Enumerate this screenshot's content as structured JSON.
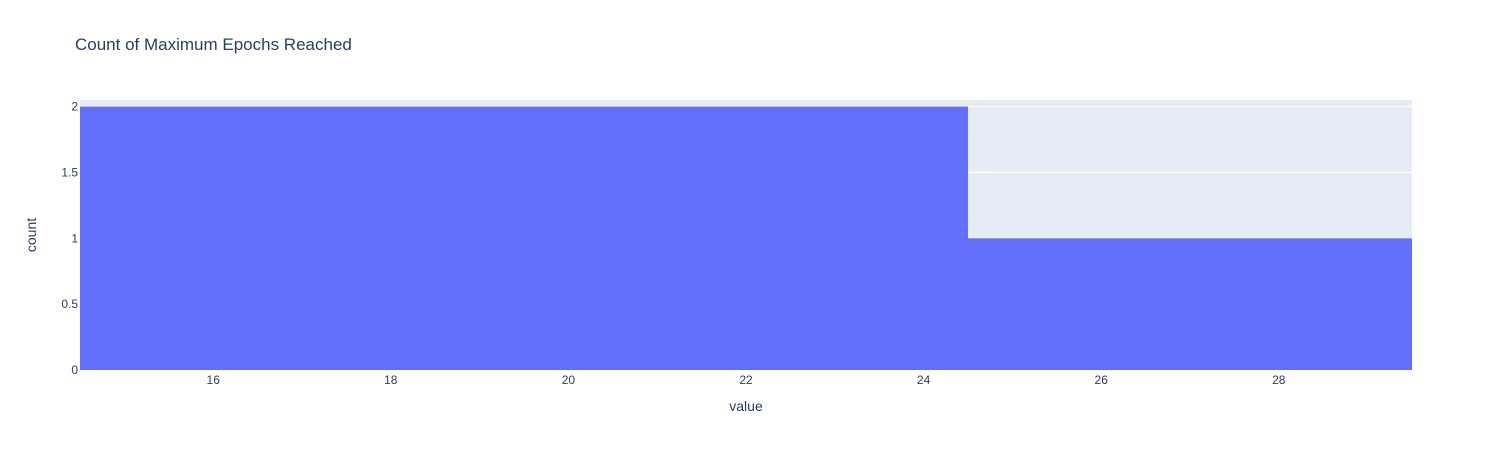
{
  "chart_data": {
    "type": "bar",
    "title": "Count of Maximum Epochs Reached",
    "xlabel": "value",
    "ylabel": "count",
    "bins": [
      {
        "x0": 14.5,
        "x1": 24.5,
        "count": 2
      },
      {
        "x0": 24.5,
        "x1": 29.5,
        "count": 1
      }
    ],
    "xlim": [
      14.5,
      29.5
    ],
    "ylim": [
      0,
      2.05
    ],
    "xticks": [
      16,
      18,
      20,
      22,
      24,
      26,
      28
    ],
    "xtick_labels": [
      "16",
      "18",
      "20",
      "22",
      "24",
      "26",
      "28"
    ],
    "yticks": [
      0,
      0.5,
      1,
      1.5,
      2
    ],
    "ytick_labels": [
      "0",
      "0.5",
      "1",
      "1.5",
      "2"
    ],
    "grid": true,
    "colors": {
      "bar": "#636efa",
      "plot_bg": "#e5ecf6",
      "grid": "#ffffff",
      "text": "#2a3f5f"
    }
  }
}
